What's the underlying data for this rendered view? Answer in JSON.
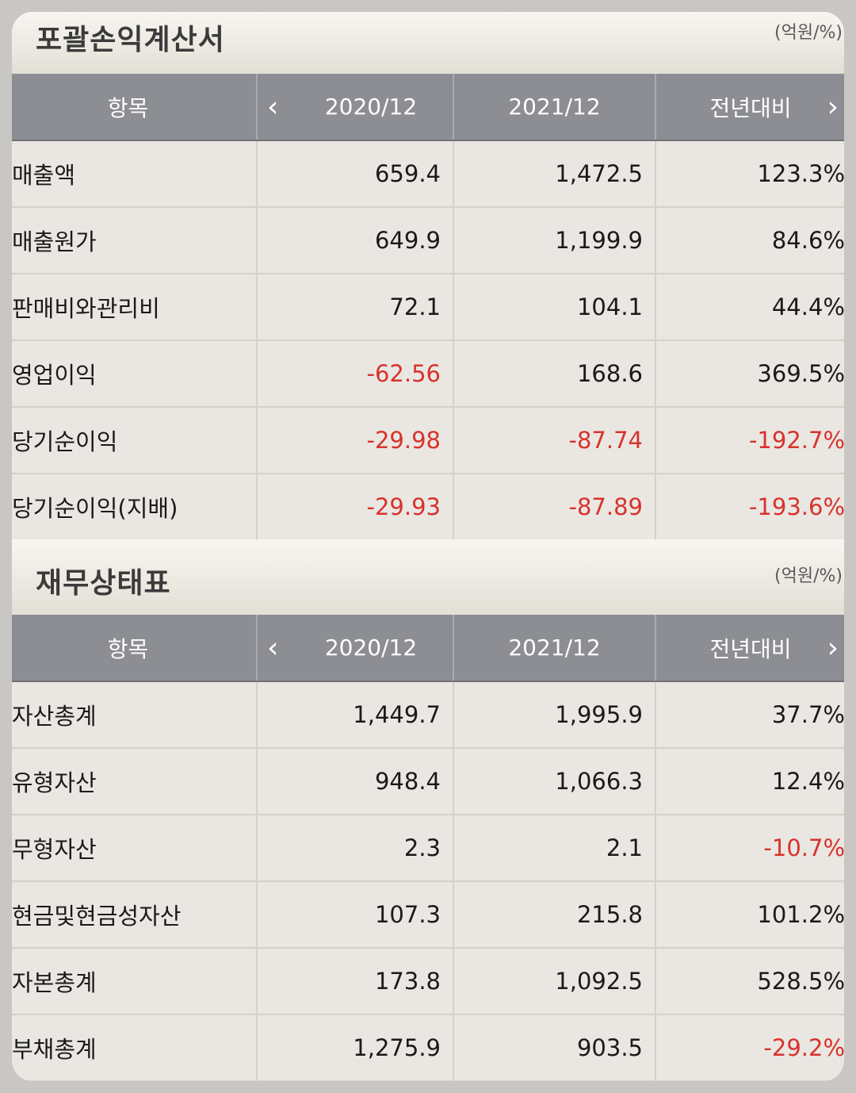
{
  "sections": [
    {
      "title": "포괄손익계산서",
      "unit": "(억원/%)",
      "header": {
        "item": "항목",
        "col1": "2020/12",
        "col2": "2021/12",
        "col3": "전년대비"
      },
      "rows": [
        {
          "label": "매출액",
          "v1": "659.4",
          "v2": "1,472.5",
          "v3": "123.3%"
        },
        {
          "label": "매출원가",
          "v1": "649.9",
          "v2": "1,199.9",
          "v3": "84.6%"
        },
        {
          "label": "판매비와관리비",
          "v1": "72.1",
          "v2": "104.1",
          "v3": "44.4%"
        },
        {
          "label": "영업이익",
          "v1": "-62.56",
          "v2": "168.6",
          "v3": "369.5%"
        },
        {
          "label": "당기순이익",
          "v1": "-29.98",
          "v2": "-87.74",
          "v3": "-192.7%"
        },
        {
          "label": "당기순이익(지배)",
          "v1": "-29.93",
          "v2": "-87.89",
          "v3": "-193.6%"
        }
      ]
    },
    {
      "title": "재무상태표",
      "unit": "(억원/%)",
      "header": {
        "item": "항목",
        "col1": "2020/12",
        "col2": "2021/12",
        "col3": "전년대비"
      },
      "rows": [
        {
          "label": "자산총계",
          "v1": "1,449.7",
          "v2": "1,995.9",
          "v3": "37.7%"
        },
        {
          "label": "유형자산",
          "v1": "948.4",
          "v2": "1,066.3",
          "v3": "12.4%"
        },
        {
          "label": "무형자산",
          "v1": "2.3",
          "v2": "2.1",
          "v3": "-10.7%"
        },
        {
          "label": "현금및현금성자산",
          "v1": "107.3",
          "v2": "215.8",
          "v3": "101.2%"
        },
        {
          "label": "자본총계",
          "v1": "173.8",
          "v2": "1,092.5",
          "v3": "528.5%"
        },
        {
          "label": "부채총계",
          "v1": "1,275.9",
          "v2": "903.5",
          "v3": "-29.2%"
        }
      ]
    }
  ],
  "icons": {
    "prev": "chevron-left-icon",
    "next": "chevron-right-icon"
  },
  "colors": {
    "negative": "#d8322c",
    "header_bg": "#8c8e94",
    "panel_bg": "#eae7e2"
  }
}
